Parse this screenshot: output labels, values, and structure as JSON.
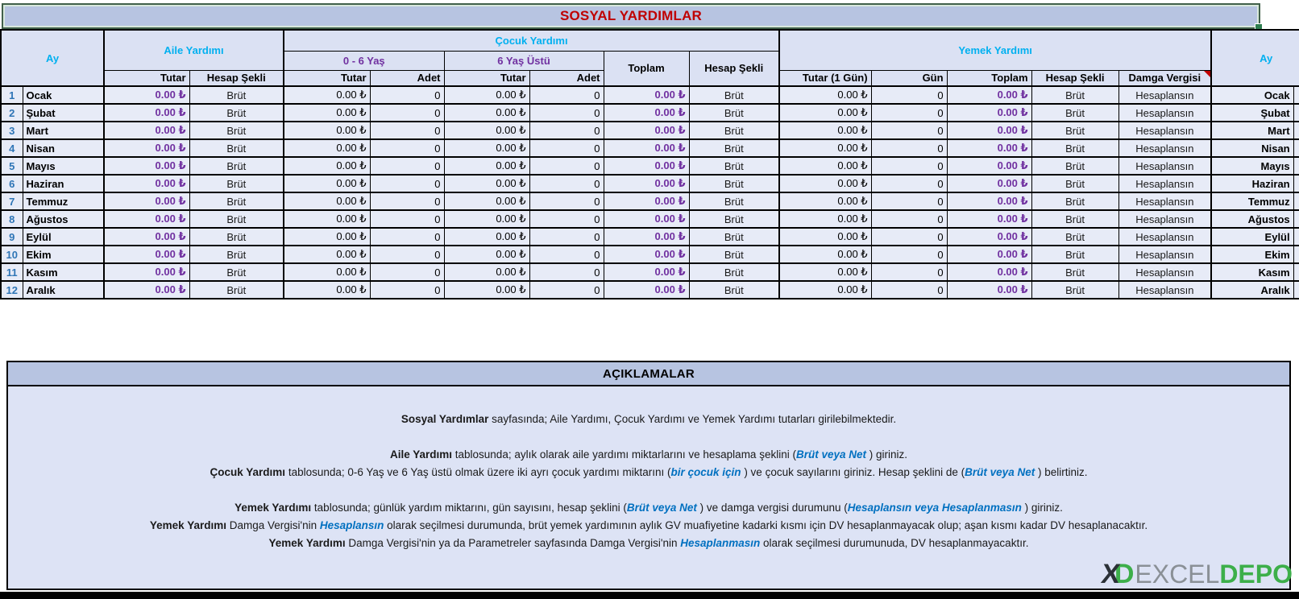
{
  "title": "SOSYAL YARDIMLAR",
  "colors": {
    "title_red": "#C00000",
    "header_cyan": "#00B0F0",
    "header_purple": "#7030A0",
    "row_number_blue": "#2E75B6",
    "emphasis_blue": "#0070C0",
    "title_bar_bg": "#B7C4E1",
    "header_cell_bg": "#DBE1F3",
    "data_cell_bg": "#E7EBF7",
    "selection_green": "#2E7D4F",
    "logo_green": "#3DAF4A"
  },
  "table": {
    "headers": {
      "ay_left": "Ay",
      "aile": "Aile Yardımı",
      "cocuk": "Çocuk Yardımı",
      "yas06": "0 - 6 Yaş",
      "yas6u": "6 Yaş Üstü",
      "toplam": "Toplam",
      "hesap_sekli": "Hesap Şekli",
      "yemek": "Yemek Yardımı",
      "tutar": "Tutar",
      "adet": "Adet",
      "tutar_1gun": "Tutar (1 Gün)",
      "gun": "Gün",
      "damga_vergisi": "Damga Vergisi",
      "ay_right": "Ay"
    },
    "rows": [
      {
        "num": "1",
        "month": "Ocak",
        "aile_tutar": "0.00 ₺",
        "aile_hesap": "Brüt",
        "c06_tutar": "0.00 ₺",
        "c06_adet": "0",
        "c6u_tutar": "0.00 ₺",
        "c6u_adet": "0",
        "cocuk_toplam": "0.00 ₺",
        "cocuk_hesap": "Brüt",
        "yemek_tutar": "0.00 ₺",
        "yemek_gun": "0",
        "yemek_toplam": "0.00 ₺",
        "yemek_hesap": "Brüt",
        "damga": "Hesaplansın"
      },
      {
        "num": "2",
        "month": "Şubat",
        "aile_tutar": "0.00 ₺",
        "aile_hesap": "Brüt",
        "c06_tutar": "0.00 ₺",
        "c06_adet": "0",
        "c6u_tutar": "0.00 ₺",
        "c6u_adet": "0",
        "cocuk_toplam": "0.00 ₺",
        "cocuk_hesap": "Brüt",
        "yemek_tutar": "0.00 ₺",
        "yemek_gun": "0",
        "yemek_toplam": "0.00 ₺",
        "yemek_hesap": "Brüt",
        "damga": "Hesaplansın"
      },
      {
        "num": "3",
        "month": "Mart",
        "aile_tutar": "0.00 ₺",
        "aile_hesap": "Brüt",
        "c06_tutar": "0.00 ₺",
        "c06_adet": "0",
        "c6u_tutar": "0.00 ₺",
        "c6u_adet": "0",
        "cocuk_toplam": "0.00 ₺",
        "cocuk_hesap": "Brüt",
        "yemek_tutar": "0.00 ₺",
        "yemek_gun": "0",
        "yemek_toplam": "0.00 ₺",
        "yemek_hesap": "Brüt",
        "damga": "Hesaplansın"
      },
      {
        "num": "4",
        "month": "Nisan",
        "aile_tutar": "0.00 ₺",
        "aile_hesap": "Brüt",
        "c06_tutar": "0.00 ₺",
        "c06_adet": "0",
        "c6u_tutar": "0.00 ₺",
        "c6u_adet": "0",
        "cocuk_toplam": "0.00 ₺",
        "cocuk_hesap": "Brüt",
        "yemek_tutar": "0.00 ₺",
        "yemek_gun": "0",
        "yemek_toplam": "0.00 ₺",
        "yemek_hesap": "Brüt",
        "damga": "Hesaplansın"
      },
      {
        "num": "5",
        "month": "Mayıs",
        "aile_tutar": "0.00 ₺",
        "aile_hesap": "Brüt",
        "c06_tutar": "0.00 ₺",
        "c06_adet": "0",
        "c6u_tutar": "0.00 ₺",
        "c6u_adet": "0",
        "cocuk_toplam": "0.00 ₺",
        "cocuk_hesap": "Brüt",
        "yemek_tutar": "0.00 ₺",
        "yemek_gun": "0",
        "yemek_toplam": "0.00 ₺",
        "yemek_hesap": "Brüt",
        "damga": "Hesaplansın"
      },
      {
        "num": "6",
        "month": "Haziran",
        "aile_tutar": "0.00 ₺",
        "aile_hesap": "Brüt",
        "c06_tutar": "0.00 ₺",
        "c06_adet": "0",
        "c6u_tutar": "0.00 ₺",
        "c6u_adet": "0",
        "cocuk_toplam": "0.00 ₺",
        "cocuk_hesap": "Brüt",
        "yemek_tutar": "0.00 ₺",
        "yemek_gun": "0",
        "yemek_toplam": "0.00 ₺",
        "yemek_hesap": "Brüt",
        "damga": "Hesaplansın"
      },
      {
        "num": "7",
        "month": "Temmuz",
        "aile_tutar": "0.00 ₺",
        "aile_hesap": "Brüt",
        "c06_tutar": "0.00 ₺",
        "c06_adet": "0",
        "c6u_tutar": "0.00 ₺",
        "c6u_adet": "0",
        "cocuk_toplam": "0.00 ₺",
        "cocuk_hesap": "Brüt",
        "yemek_tutar": "0.00 ₺",
        "yemek_gun": "0",
        "yemek_toplam": "0.00 ₺",
        "yemek_hesap": "Brüt",
        "damga": "Hesaplansın"
      },
      {
        "num": "8",
        "month": "Ağustos",
        "aile_tutar": "0.00 ₺",
        "aile_hesap": "Brüt",
        "c06_tutar": "0.00 ₺",
        "c06_adet": "0",
        "c6u_tutar": "0.00 ₺",
        "c6u_adet": "0",
        "cocuk_toplam": "0.00 ₺",
        "cocuk_hesap": "Brüt",
        "yemek_tutar": "0.00 ₺",
        "yemek_gun": "0",
        "yemek_toplam": "0.00 ₺",
        "yemek_hesap": "Brüt",
        "damga": "Hesaplansın"
      },
      {
        "num": "9",
        "month": "Eylül",
        "aile_tutar": "0.00 ₺",
        "aile_hesap": "Brüt",
        "c06_tutar": "0.00 ₺",
        "c06_adet": "0",
        "c6u_tutar": "0.00 ₺",
        "c6u_adet": "0",
        "cocuk_toplam": "0.00 ₺",
        "cocuk_hesap": "Brüt",
        "yemek_tutar": "0.00 ₺",
        "yemek_gun": "0",
        "yemek_toplam": "0.00 ₺",
        "yemek_hesap": "Brüt",
        "damga": "Hesaplansın"
      },
      {
        "num": "10",
        "month": "Ekim",
        "aile_tutar": "0.00 ₺",
        "aile_hesap": "Brüt",
        "c06_tutar": "0.00 ₺",
        "c06_adet": "0",
        "c6u_tutar": "0.00 ₺",
        "c6u_adet": "0",
        "cocuk_toplam": "0.00 ₺",
        "cocuk_hesap": "Brüt",
        "yemek_tutar": "0.00 ₺",
        "yemek_gun": "0",
        "yemek_toplam": "0.00 ₺",
        "yemek_hesap": "Brüt",
        "damga": "Hesaplansın"
      },
      {
        "num": "11",
        "month": "Kasım",
        "aile_tutar": "0.00 ₺",
        "aile_hesap": "Brüt",
        "c06_tutar": "0.00 ₺",
        "c06_adet": "0",
        "c6u_tutar": "0.00 ₺",
        "c6u_adet": "0",
        "cocuk_toplam": "0.00 ₺",
        "cocuk_hesap": "Brüt",
        "yemek_tutar": "0.00 ₺",
        "yemek_gun": "0",
        "yemek_toplam": "0.00 ₺",
        "yemek_hesap": "Brüt",
        "damga": "Hesaplansın"
      },
      {
        "num": "12",
        "month": "Aralık",
        "aile_tutar": "0.00 ₺",
        "aile_hesap": "Brüt",
        "c06_tutar": "0.00 ₺",
        "c06_adet": "0",
        "c6u_tutar": "0.00 ₺",
        "c6u_adet": "0",
        "cocuk_toplam": "0.00 ₺",
        "cocuk_hesap": "Brüt",
        "yemek_tutar": "0.00 ₺",
        "yemek_gun": "0",
        "yemek_toplam": "0.00 ₺",
        "yemek_hesap": "Brüt",
        "damga": "Hesaplansın"
      }
    ]
  },
  "aciklamalar": {
    "title": "AÇIKLAMALAR",
    "lines": [
      [
        {
          "t": "Sosyal Yardımlar",
          "s": "b"
        },
        {
          "t": " sayfasında; Aile Yardımı, Çocuk Yardımı ve Yemek Yardımı tutarları girilebilmektedir.",
          "s": "n"
        }
      ],
      [
        {
          "t": "Aile Yardımı",
          "s": "b"
        },
        {
          "t": " tablosunda; aylık olarak aile yardımı miktarlarını ve hesaplama şeklini (",
          "s": "n"
        },
        {
          "t": "Brüt veya Net",
          "s": "i"
        },
        {
          "t": " ) giriniz.",
          "s": "n"
        }
      ],
      [
        {
          "t": "Çocuk Yardımı",
          "s": "b"
        },
        {
          "t": " tablosunda; 0-6 Yaş ve 6 Yaş üstü olmak üzere iki ayrı çocuk yardımı miktarını (",
          "s": "n"
        },
        {
          "t": "bir çocuk için",
          "s": "i"
        },
        {
          "t": " ) ve çocuk sayılarını giriniz. Hesap şeklini de (",
          "s": "n"
        },
        {
          "t": "Brüt veya Net",
          "s": "i"
        },
        {
          "t": " ) belirtiniz.",
          "s": "n"
        }
      ],
      [
        {
          "t": "Yemek Yardımı",
          "s": "b"
        },
        {
          "t": " tablosunda; günlük yardım miktarını, gün sayısını, hesap şeklini (",
          "s": "n"
        },
        {
          "t": "Brüt veya Net",
          "s": "i"
        },
        {
          "t": " ) ve damga vergisi durumunu (",
          "s": "n"
        },
        {
          "t": "Hesaplansın veya Hesaplanmasın",
          "s": "i"
        },
        {
          "t": " ) giriniz.",
          "s": "n"
        }
      ],
      [
        {
          "t": "Yemek Yardımı",
          "s": "b"
        },
        {
          "t": " Damga Vergisi'nin ",
          "s": "n"
        },
        {
          "t": "Hesaplansın",
          "s": "i"
        },
        {
          "t": " olarak seçilmesi durumunda, brüt yemek yardımının aylık GV muafiyetine kadarki kısmı için DV hesaplanmayacak olup; aşan kısmı kadar DV hesaplanacaktır.",
          "s": "n"
        }
      ],
      [
        {
          "t": "Yemek Yardımı",
          "s": "b"
        },
        {
          "t": " Damga Vergisi'nin ya da Parametreler sayfasında Damga Vergisi'nin ",
          "s": "n"
        },
        {
          "t": "Hesaplanmasın",
          "s": "i"
        },
        {
          "t": " olarak seçilmesi durumunuda, DV hesaplanmayacaktır.",
          "s": "n"
        }
      ]
    ]
  },
  "logo": {
    "x": "X",
    "d": "D",
    "excel": "EXCEL",
    "depo": "DEPO"
  }
}
